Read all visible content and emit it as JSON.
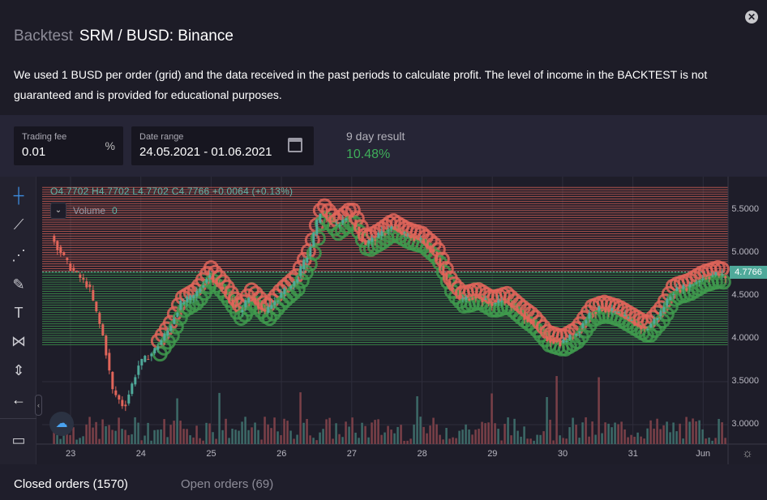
{
  "header": {
    "module": "Backtest",
    "title": "SRM / BUSD: Binance",
    "close_icon": "close-icon",
    "description": "We used 1 BUSD per order (grid) and the data received in the past periods to calculate profit. The level of income in the BACKTEST is not guaranteed and is provided for educational purposes."
  },
  "stats": {
    "fee_label": "Trading fee",
    "fee_value": "0.01",
    "fee_unit": "%",
    "range_label": "Date range",
    "range_value": "24.05.2021 - 01.06.2021",
    "result_label": "9 day result",
    "result_value": "10.48%",
    "result_color": "#3fae5a"
  },
  "chart": {
    "ohlc": "O4.7702  H4.7702  L4.7702  C4.7766  +0.0064 (+0.13%)",
    "volume_label": "Volume",
    "volume_value": "0",
    "last_price": "4.7766",
    "toolbar": [
      "crosshair-icon",
      "trend-line-icon",
      "pitchfork-icon",
      "brush-icon",
      "text-icon",
      "pattern-icon",
      "measure-icon",
      "back-arrow-icon",
      "ruler-icon"
    ]
  },
  "chart_data": {
    "type": "candlestick",
    "ylim": [
      2.8,
      5.9
    ],
    "y_ticks": [
      "5.5000",
      "5.0000",
      "4.5000",
      "4.0000",
      "3.5000",
      "3.0000"
    ],
    "x_ticks": [
      "23",
      "24",
      "25",
      "26",
      "27",
      "28",
      "29",
      "30",
      "31",
      "Jun"
    ],
    "grid_sell_range": [
      4.79,
      5.78
    ],
    "grid_buy_range": [
      3.93,
      4.77
    ],
    "colors": {
      "up": "#4fa99a",
      "down": "#e0655a",
      "sell": "#e0655a",
      "buy": "#3f9a4e"
    },
    "price_path": [
      [
        "2021-05-22T18:00",
        5.2
      ],
      [
        "2021-05-23T00:00",
        4.85
      ],
      [
        "2021-05-23T07:00",
        4.6
      ],
      [
        "2021-05-23T12:00",
        4.0
      ],
      [
        "2021-05-23T15:00",
        3.4
      ],
      [
        "2021-05-23T19:00",
        3.2
      ],
      [
        "2021-05-24T00:00",
        3.7
      ],
      [
        "2021-05-24T05:00",
        3.85
      ],
      [
        "2021-05-24T10:00",
        4.1
      ],
      [
        "2021-05-24T14:00",
        4.4
      ],
      [
        "2021-05-24T19:00",
        4.5
      ],
      [
        "2021-05-25T00:00",
        4.75
      ],
      [
        "2021-05-25T05:00",
        4.55
      ],
      [
        "2021-05-25T10:00",
        4.3
      ],
      [
        "2021-05-25T14:00",
        4.5
      ],
      [
        "2021-05-25T19:00",
        4.3
      ],
      [
        "2021-05-26T00:00",
        4.5
      ],
      [
        "2021-05-26T05:00",
        4.65
      ],
      [
        "2021-05-26T10:00",
        5.0
      ],
      [
        "2021-05-26T14:00",
        5.5
      ],
      [
        "2021-05-26T19:00",
        5.3
      ],
      [
        "2021-05-27T00:00",
        5.45
      ],
      [
        "2021-05-27T05:00",
        5.1
      ],
      [
        "2021-05-27T10:00",
        5.2
      ],
      [
        "2021-05-27T14:00",
        5.3
      ],
      [
        "2021-05-27T19:00",
        5.2
      ],
      [
        "2021-05-28T00:00",
        5.15
      ],
      [
        "2021-05-28T05:00",
        5.0
      ],
      [
        "2021-05-28T10:00",
        4.6
      ],
      [
        "2021-05-28T14:00",
        4.45
      ],
      [
        "2021-05-28T19:00",
        4.5
      ],
      [
        "2021-05-29T00:00",
        4.4
      ],
      [
        "2021-05-29T05:00",
        4.45
      ],
      [
        "2021-05-29T10:00",
        4.3
      ],
      [
        "2021-05-29T14:00",
        4.2
      ],
      [
        "2021-05-29T19:00",
        4.0
      ],
      [
        "2021-05-30T00:00",
        3.95
      ],
      [
        "2021-05-30T05:00",
        4.05
      ],
      [
        "2021-05-30T10:00",
        4.3
      ],
      [
        "2021-05-30T14:00",
        4.35
      ],
      [
        "2021-05-30T19:00",
        4.3
      ],
      [
        "2021-05-31T00:00",
        4.2
      ],
      [
        "2021-05-31T05:00",
        4.1
      ],
      [
        "2021-05-31T10:00",
        4.3
      ],
      [
        "2021-05-31T14:00",
        4.55
      ],
      [
        "2021-05-31T19:00",
        4.6
      ],
      [
        "2021-06-01T00:00",
        4.7
      ],
      [
        "2021-06-01T05:00",
        4.75
      ],
      [
        "2021-06-01T10:00",
        4.7
      ],
      [
        "2021-06-01T14:00",
        4.78
      ]
    ]
  },
  "tabs": [
    {
      "label": "Closed orders (1570)"
    },
    {
      "label": "Open orders (69)"
    }
  ]
}
